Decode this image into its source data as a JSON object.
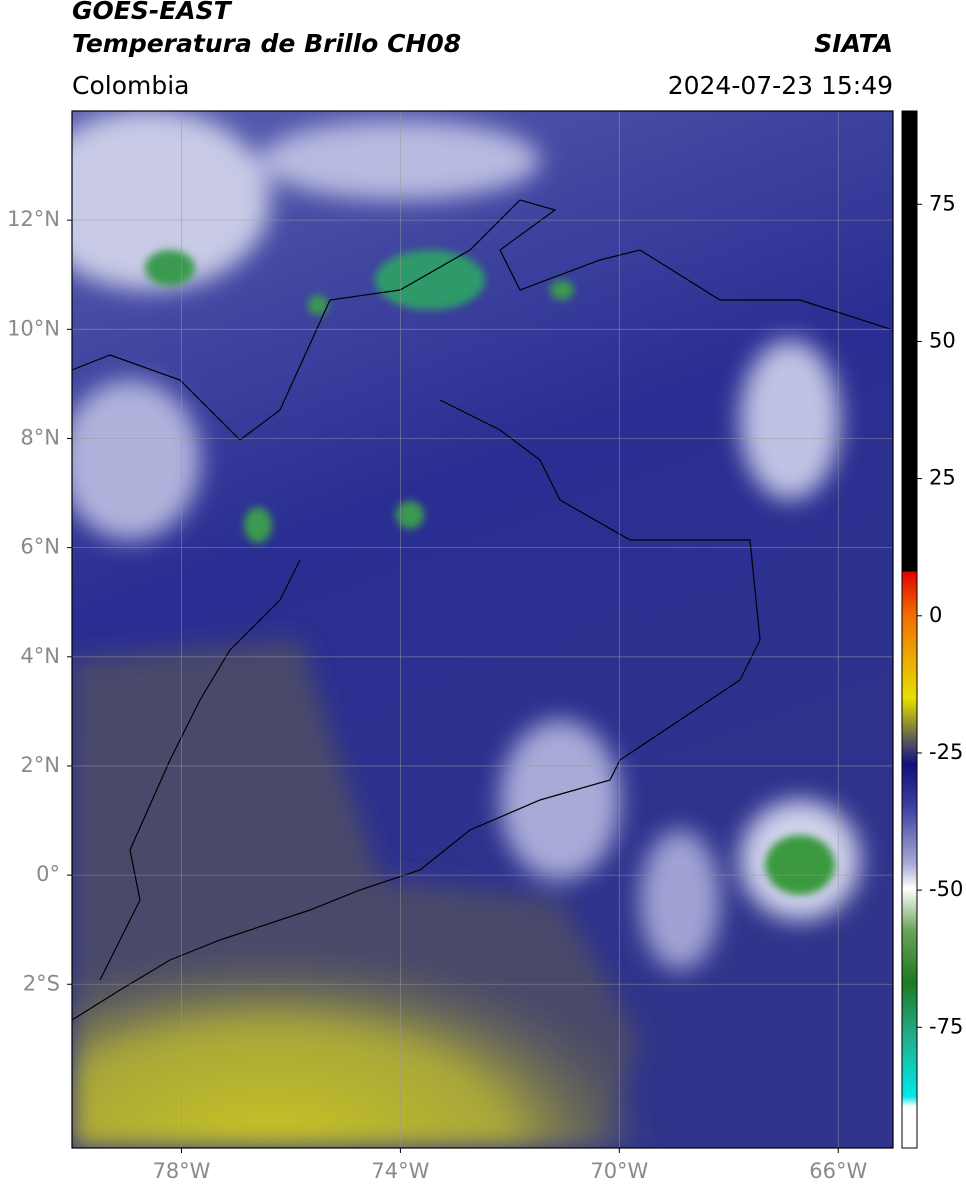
{
  "header": {
    "title": "GOES-EAST",
    "subtitle": "Temperatura de Brillo CH08",
    "region": "Colombia",
    "source": "SIATA",
    "datetime": "2024-07-23 15:49"
  },
  "map": {
    "lonlim": [
      -80,
      -65
    ],
    "latlim": [
      -5,
      14
    ],
    "lonticks": [
      {
        "value": -78,
        "label": "78°W"
      },
      {
        "value": -74,
        "label": "74°W"
      },
      {
        "value": -70,
        "label": "70°W"
      },
      {
        "value": -66,
        "label": "66°W"
      }
    ],
    "latticks": [
      {
        "value": 12,
        "label": "12°N"
      },
      {
        "value": 10,
        "label": "10°N"
      },
      {
        "value": 8,
        "label": "8°N"
      },
      {
        "value": 6,
        "label": "6°N"
      },
      {
        "value": 4,
        "label": "4°N"
      },
      {
        "value": 2,
        "label": "2°N"
      },
      {
        "value": 0,
        "label": "0°"
      },
      {
        "value": -2,
        "label": "2°S"
      }
    ],
    "grid": true
  },
  "colorbar": {
    "lim": [
      -97,
      92
    ],
    "ticks": [
      75,
      50,
      25,
      0,
      -25,
      -50,
      -75
    ]
  }
}
